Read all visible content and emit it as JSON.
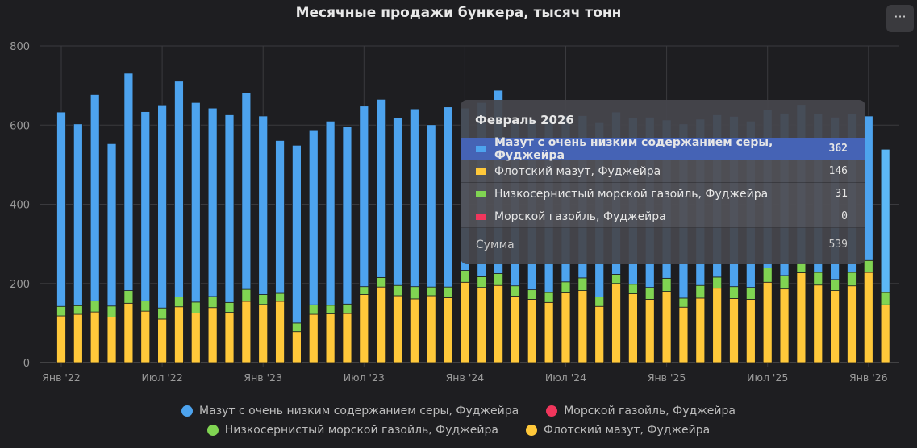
{
  "chart_data": {
    "type": "bar",
    "stacked": true,
    "title": "Месячные продажи бункера, тысяч тонн",
    "ylim": [
      0,
      800
    ],
    "yticks": [
      0,
      200,
      400,
      600,
      800
    ],
    "grid": true,
    "legend_position": "bottom",
    "x_tick_labels": [
      "Янв '22",
      "Июл '22",
      "Янв '23",
      "Июл '23",
      "Янв '24",
      "Июл '24",
      "Янв '25",
      "Июл '25",
      "Янв '26"
    ],
    "categories": [
      "2022-01",
      "2022-02",
      "2022-03",
      "2022-04",
      "2022-05",
      "2022-06",
      "2022-07",
      "2022-08",
      "2022-09",
      "2022-10",
      "2022-11",
      "2022-12",
      "2023-01",
      "2023-02",
      "2023-03",
      "2023-04",
      "2023-05",
      "2023-06",
      "2023-07",
      "2023-08",
      "2023-09",
      "2023-10",
      "2023-11",
      "2023-12",
      "2024-01",
      "2024-02",
      "2024-03",
      "2024-04",
      "2024-05",
      "2024-06",
      "2024-07",
      "2024-08",
      "2024-09",
      "2024-10",
      "2024-11",
      "2024-12",
      "2025-01",
      "2025-02",
      "2025-03",
      "2025-04",
      "2025-05",
      "2025-06",
      "2025-07",
      "2025-08",
      "2025-09",
      "2025-10",
      "2025-11",
      "2025-12",
      "2026-01",
      "2026-02"
    ],
    "series": [
      {
        "name": "Флотский мазут, Фуджейра",
        "color": "#ffc83a",
        "values": [
          118,
          122,
          128,
          115,
          150,
          130,
          110,
          141,
          125,
          139,
          127,
          155,
          147,
          155,
          78,
          122,
          123,
          124,
          172,
          191,
          169,
          161,
          169,
          164,
          203,
          190,
          195,
          168,
          160,
          152,
          176,
          182,
          142,
          200,
          174,
          160,
          180,
          140,
          163,
          188,
          162,
          160,
          203,
          186,
          227,
          196,
          182,
          194,
          228,
          146
        ]
      },
      {
        "name": "Низкосернистый морской газойль, Фуджейра",
        "color": "#80d452",
        "values": [
          24,
          22,
          28,
          28,
          32,
          26,
          28,
          25,
          28,
          28,
          25,
          30,
          25,
          20,
          22,
          24,
          22,
          24,
          20,
          24,
          26,
          31,
          22,
          27,
          30,
          27,
          30,
          26,
          24,
          25,
          28,
          32,
          24,
          23,
          24,
          30,
          33,
          23,
          32,
          28,
          30,
          30,
          36,
          34,
          25,
          32,
          28,
          34,
          30,
          31
        ]
      },
      {
        "name": "Морской газойль, Фуджейра",
        "color": "#f0365c",
        "values": [
          0,
          0,
          0,
          0,
          0,
          0,
          0,
          0,
          0,
          0,
          0,
          0,
          0,
          0,
          0,
          0,
          0,
          0,
          0,
          0,
          0,
          0,
          0,
          0,
          0,
          0,
          0,
          0,
          0,
          0,
          0,
          0,
          0,
          0,
          0,
          0,
          0,
          0,
          0,
          0,
          0,
          0,
          0,
          0,
          0,
          0,
          0,
          0,
          0,
          0
        ]
      },
      {
        "name": "Мазут с очень низким содержанием серы, Фуджейра",
        "color": "#4da3ee",
        "values": [
          491,
          459,
          521,
          410,
          549,
          478,
          513,
          545,
          504,
          476,
          474,
          497,
          451,
          386,
          449,
          442,
          465,
          448,
          456,
          450,
          424,
          449,
          410,
          455,
          410,
          440,
          463,
          420,
          430,
          440,
          420,
          410,
          440,
          410,
          420,
          430,
          400,
          440,
          420,
          410,
          430,
          420,
          400,
          410,
          400,
          400,
          410,
          400,
          365,
          362
        ]
      }
    ]
  },
  "menu_label": "···",
  "tooltip": {
    "title": "Февраль 2026",
    "rows": [
      {
        "label": "Мазут с очень низким содержанием серы, Фуджейра",
        "value": "362",
        "color": "#4da3ee"
      },
      {
        "label": "Флотский мазут, Фуджейра",
        "value": "146",
        "color": "#ffc83a"
      },
      {
        "label": "Низкосернистый морской газойль, Фуджейра",
        "value": "31",
        "color": "#80d452"
      },
      {
        "label": "Морской газойль, Фуджейра",
        "value": "0",
        "color": "#f0365c"
      }
    ],
    "sum_label": "Сумма",
    "sum_value": "539"
  },
  "legend": [
    [
      {
        "label": "Мазут с очень низким содержанием серы, Фуджейра",
        "color": "#4da3ee"
      },
      {
        "label": "Морской газойль, Фуджейра",
        "color": "#f0365c"
      }
    ],
    [
      {
        "label": "Низкосернистый морской газойль, Фуджейра",
        "color": "#80d452"
      },
      {
        "label": "Флотский мазут, Фуджейра",
        "color": "#ffc83a"
      }
    ]
  ]
}
